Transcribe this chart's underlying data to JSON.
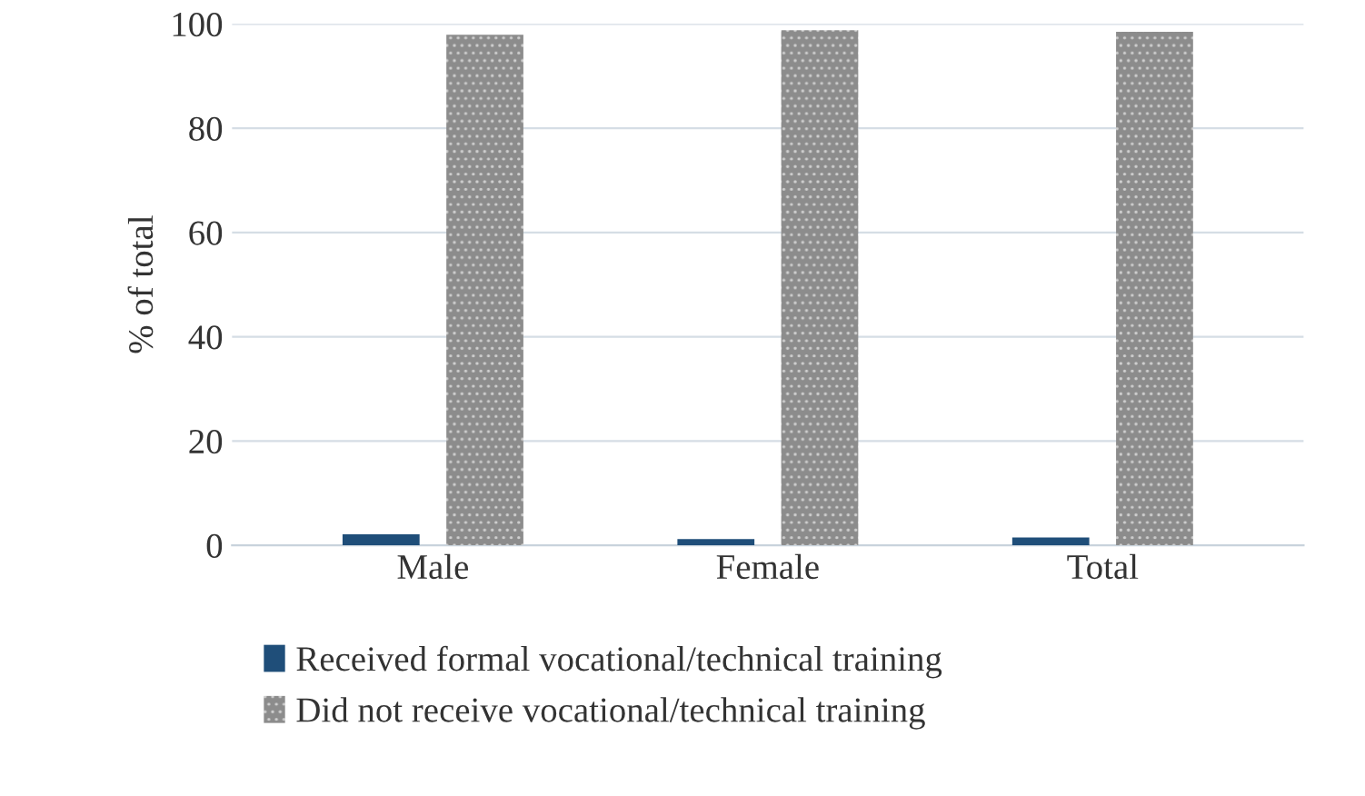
{
  "chart_data": {
    "type": "bar",
    "ylabel": "% of total",
    "categories": [
      "Male",
      "Female",
      "Total"
    ],
    "series": [
      {
        "name": "Received formal vocational/technical training",
        "color": "#1f4e79",
        "values": [
          2.1,
          1.2,
          1.5
        ]
      },
      {
        "name": "Did not receive vocational/technical training",
        "color": "#8c8c8c",
        "values": [
          97.9,
          98.8,
          98.5
        ]
      }
    ],
    "ylim": [
      0,
      100
    ],
    "yticks": [
      0,
      20,
      40,
      60,
      80,
      100
    ],
    "grid": "y",
    "legend": "bottom"
  }
}
